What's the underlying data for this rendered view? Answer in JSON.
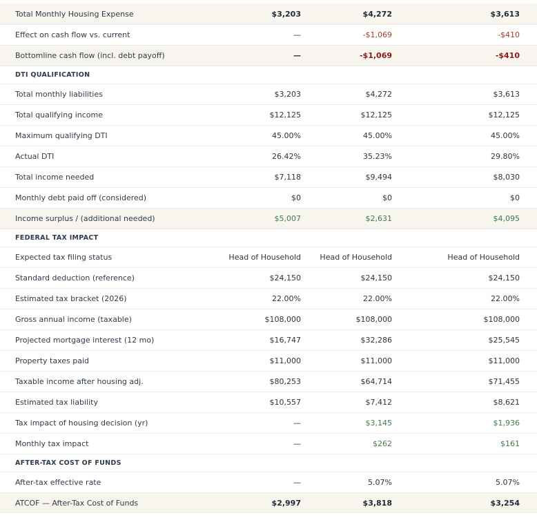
{
  "rows": [
    {
      "label": "Total Monthly Housing Expense",
      "v1": "$3,203",
      "v2": "$4,272",
      "v3": "$3,613",
      "style": "hl bold"
    },
    {
      "label": "Effect on cash flow vs. current",
      "v1": "—",
      "v2": "-$1,069",
      "v3": "-$410",
      "style": "neg"
    },
    {
      "label": "Bottomline cash flow (incl. debt payoff)",
      "v1": "—",
      "v2": "-$1,069",
      "v3": "-$410",
      "style": "hl negbold"
    },
    {
      "label": "DTI QUALIFICATION",
      "section": true
    },
    {
      "label": "Total monthly liabilities",
      "v1": "$3,203",
      "v2": "$4,272",
      "v3": "$3,613"
    },
    {
      "label": "Total qualifying income",
      "v1": "$12,125",
      "v2": "$12,125",
      "v3": "$12,125"
    },
    {
      "label": "Maximum qualifying DTI",
      "v1": "45.00%",
      "v2": "45.00%",
      "v3": "45.00%"
    },
    {
      "label": "Actual DTI",
      "v1": "26.42%",
      "v2": "35.23%",
      "v3": "29.80%"
    },
    {
      "label": "Total income needed",
      "v1": "$7,118",
      "v2": "$9,494",
      "v3": "$8,030"
    },
    {
      "label": "Monthly debt paid off (considered)",
      "v1": "$0",
      "v2": "$0",
      "v3": "$0"
    },
    {
      "label": "Income surplus / (additional needed)",
      "v1": "$5,007",
      "v2": "$2,631",
      "v3": "$4,095",
      "style": "hl pos"
    },
    {
      "label": "FEDERAL TAX IMPACT",
      "section": true
    },
    {
      "label": "Expected tax filing status",
      "v1": "Head of Household",
      "v2": "Head of Household",
      "v3": "Head of Household"
    },
    {
      "label": "Standard deduction (reference)",
      "v1": "$24,150",
      "v2": "$24,150",
      "v3": "$24,150"
    },
    {
      "label": "Estimated tax bracket (2026)",
      "v1": "22.00%",
      "v2": "22.00%",
      "v3": "22.00%"
    },
    {
      "label": "Gross annual income (taxable)",
      "v1": "$108,000",
      "v2": "$108,000",
      "v3": "$108,000"
    },
    {
      "label": "Projected mortgage interest (12 mo)",
      "v1": "$16,747",
      "v2": "$32,286",
      "v3": "$25,545"
    },
    {
      "label": "Property taxes paid",
      "v1": "$11,000",
      "v2": "$11,000",
      "v3": "$11,000"
    },
    {
      "label": "Taxable income after housing adj.",
      "v1": "$80,253",
      "v2": "$64,714",
      "v3": "$71,455"
    },
    {
      "label": "Estimated tax liability",
      "v1": "$10,557",
      "v2": "$7,412",
      "v3": "$8,621"
    },
    {
      "label": "Tax impact of housing decision (yr)",
      "v1": "—",
      "v2": "$3,145",
      "v3": "$1,936",
      "style": "pos"
    },
    {
      "label": "Monthly tax impact",
      "v1": "—",
      "v2": "$262",
      "v3": "$161",
      "style": "pos"
    },
    {
      "label": "AFTER-TAX COST OF FUNDS",
      "section": true
    },
    {
      "label": "After-tax effective rate",
      "v1": "—",
      "v2": "5.07%",
      "v3": "5.07%"
    },
    {
      "label": "ATCOF — After-Tax Cost of Funds",
      "v1": "$2,997",
      "v2": "$3,818",
      "v3": "$3,254",
      "style": "hl bold"
    }
  ],
  "colors": {
    "highlight": "#f8f5ee",
    "negative": "#a33a2a",
    "positive": "#3f7a4e"
  }
}
